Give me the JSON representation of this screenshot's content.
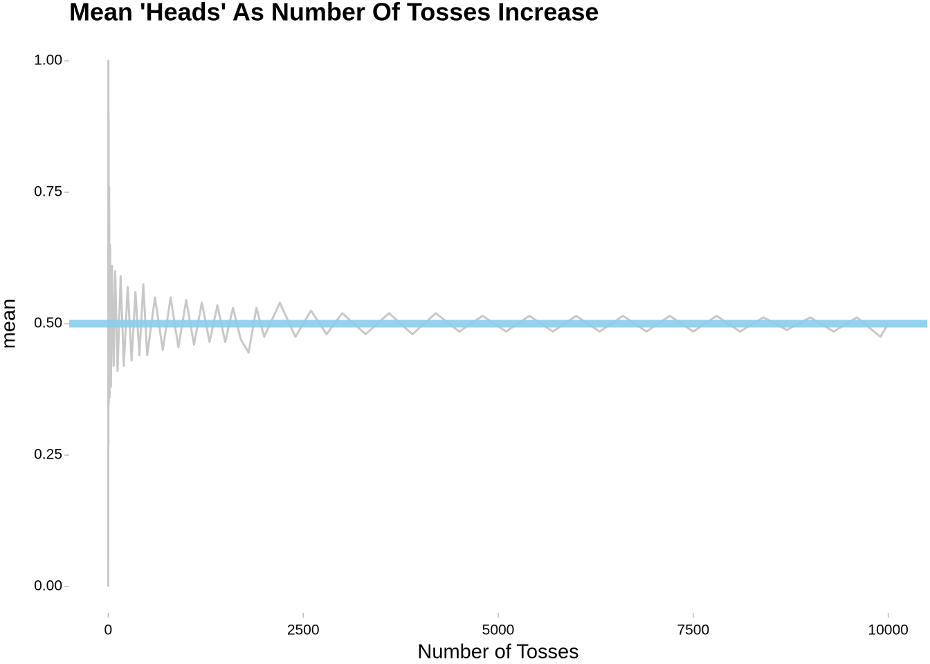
{
  "chart_data": {
    "type": "line",
    "title": "Mean 'Heads' As Number Of Tosses Increase",
    "x_label": "Number of Tosses",
    "y_label": "mean",
    "x": [
      1,
      2,
      3,
      5,
      8,
      12,
      18,
      25,
      35,
      50,
      70,
      90,
      120,
      160,
      200,
      250,
      300,
      350,
      400,
      450,
      500,
      600,
      700,
      800,
      900,
      1000,
      1100,
      1200,
      1300,
      1400,
      1500,
      1600,
      1700,
      1800,
      1900,
      2000,
      2200,
      2400,
      2600,
      2800,
      3000,
      3300,
      3600,
      3900,
      4200,
      4500,
      4800,
      5100,
      5400,
      5700,
      6000,
      6300,
      6600,
      6900,
      7200,
      7500,
      7800,
      8100,
      8400,
      8700,
      9000,
      9300,
      9600,
      9900,
      10000
    ],
    "series": [
      {
        "name": "mean",
        "color": "#c8c8c8",
        "values": [
          0,
          1.0,
          0.27,
          0.9,
          0.35,
          0.76,
          0.36,
          0.65,
          0.38,
          0.61,
          0.42,
          0.6,
          0.41,
          0.59,
          0.42,
          0.57,
          0.43,
          0.56,
          0.44,
          0.575,
          0.44,
          0.55,
          0.45,
          0.55,
          0.455,
          0.545,
          0.46,
          0.54,
          0.465,
          0.535,
          0.465,
          0.53,
          0.47,
          0.445,
          0.53,
          0.475,
          0.54,
          0.475,
          0.525,
          0.48,
          0.52,
          0.48,
          0.52,
          0.48,
          0.52,
          0.485,
          0.515,
          0.485,
          0.515,
          0.485,
          0.515,
          0.485,
          0.515,
          0.485,
          0.515,
          0.485,
          0.515,
          0.485,
          0.512,
          0.488,
          0.512,
          0.485,
          0.512,
          0.475,
          0.5
        ]
      }
    ],
    "hline": {
      "value": 0.5,
      "color": "#87ceeb"
    },
    "xlim": [
      -500,
      10500
    ],
    "ylim": [
      -0.05,
      1.05
    ],
    "xticks": [
      0,
      2500,
      5000,
      7500,
      10000
    ],
    "yticks": [
      {
        "value": 0,
        "label": "0.00"
      },
      {
        "value": 0.25,
        "label": "0.25"
      },
      {
        "value": 0.5,
        "label": "0.50"
      },
      {
        "value": 0.75,
        "label": "0.75"
      },
      {
        "value": 1,
        "label": "1.00"
      }
    ],
    "grid": false
  }
}
